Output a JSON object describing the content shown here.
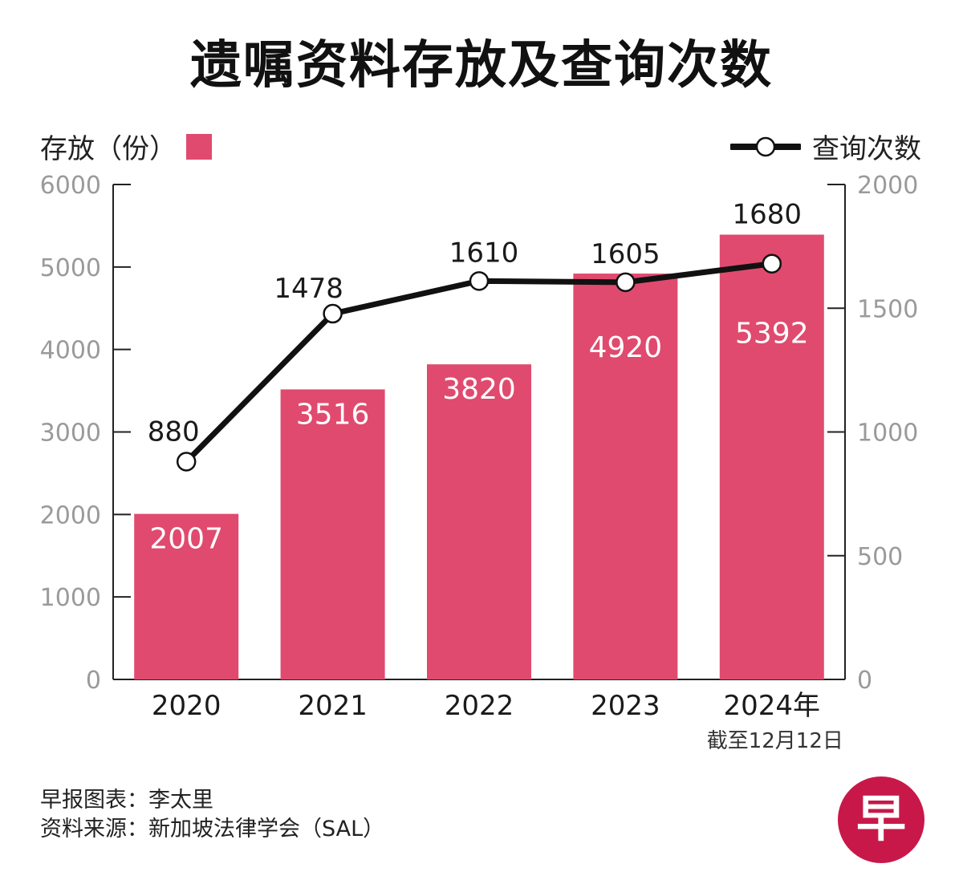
{
  "title": "遗嘱资料存放及查询次数",
  "legend": {
    "bar_label": "存放（份）",
    "line_label": "查询次数"
  },
  "colors": {
    "bar": "#e04a6e",
    "line": "#111111",
    "axis_text": "#9a9a9a",
    "logo": "#c8184a"
  },
  "footer": {
    "credit": "早报图表：李太里",
    "source": "资料来源：新加坡法律学会（SAL）"
  },
  "logo": {
    "char": "早"
  },
  "chart_data": {
    "type": "bar",
    "title": "遗嘱资料存放及查询次数",
    "categories": [
      "2020",
      "2021",
      "2022",
      "2023",
      "2024年"
    ],
    "category_note": "截至12月12日",
    "series": [
      {
        "name": "存放（份）",
        "type": "bar",
        "axis": "left",
        "values": [
          2007,
          3516,
          3820,
          4920,
          5392
        ]
      },
      {
        "name": "查询次数",
        "type": "line",
        "axis": "right",
        "values": [
          880,
          1478,
          1610,
          1605,
          1680
        ]
      }
    ],
    "y_left": {
      "label": "存放（份）",
      "ylim": [
        0,
        6000
      ],
      "ticks": [
        0,
        1000,
        2000,
        3000,
        4000,
        5000,
        6000
      ]
    },
    "y_right": {
      "label": "查询次数",
      "ylim": [
        0,
        2000
      ],
      "ticks": [
        0,
        500,
        1000,
        1500,
        2000
      ]
    },
    "grid": false,
    "legend": "top"
  }
}
